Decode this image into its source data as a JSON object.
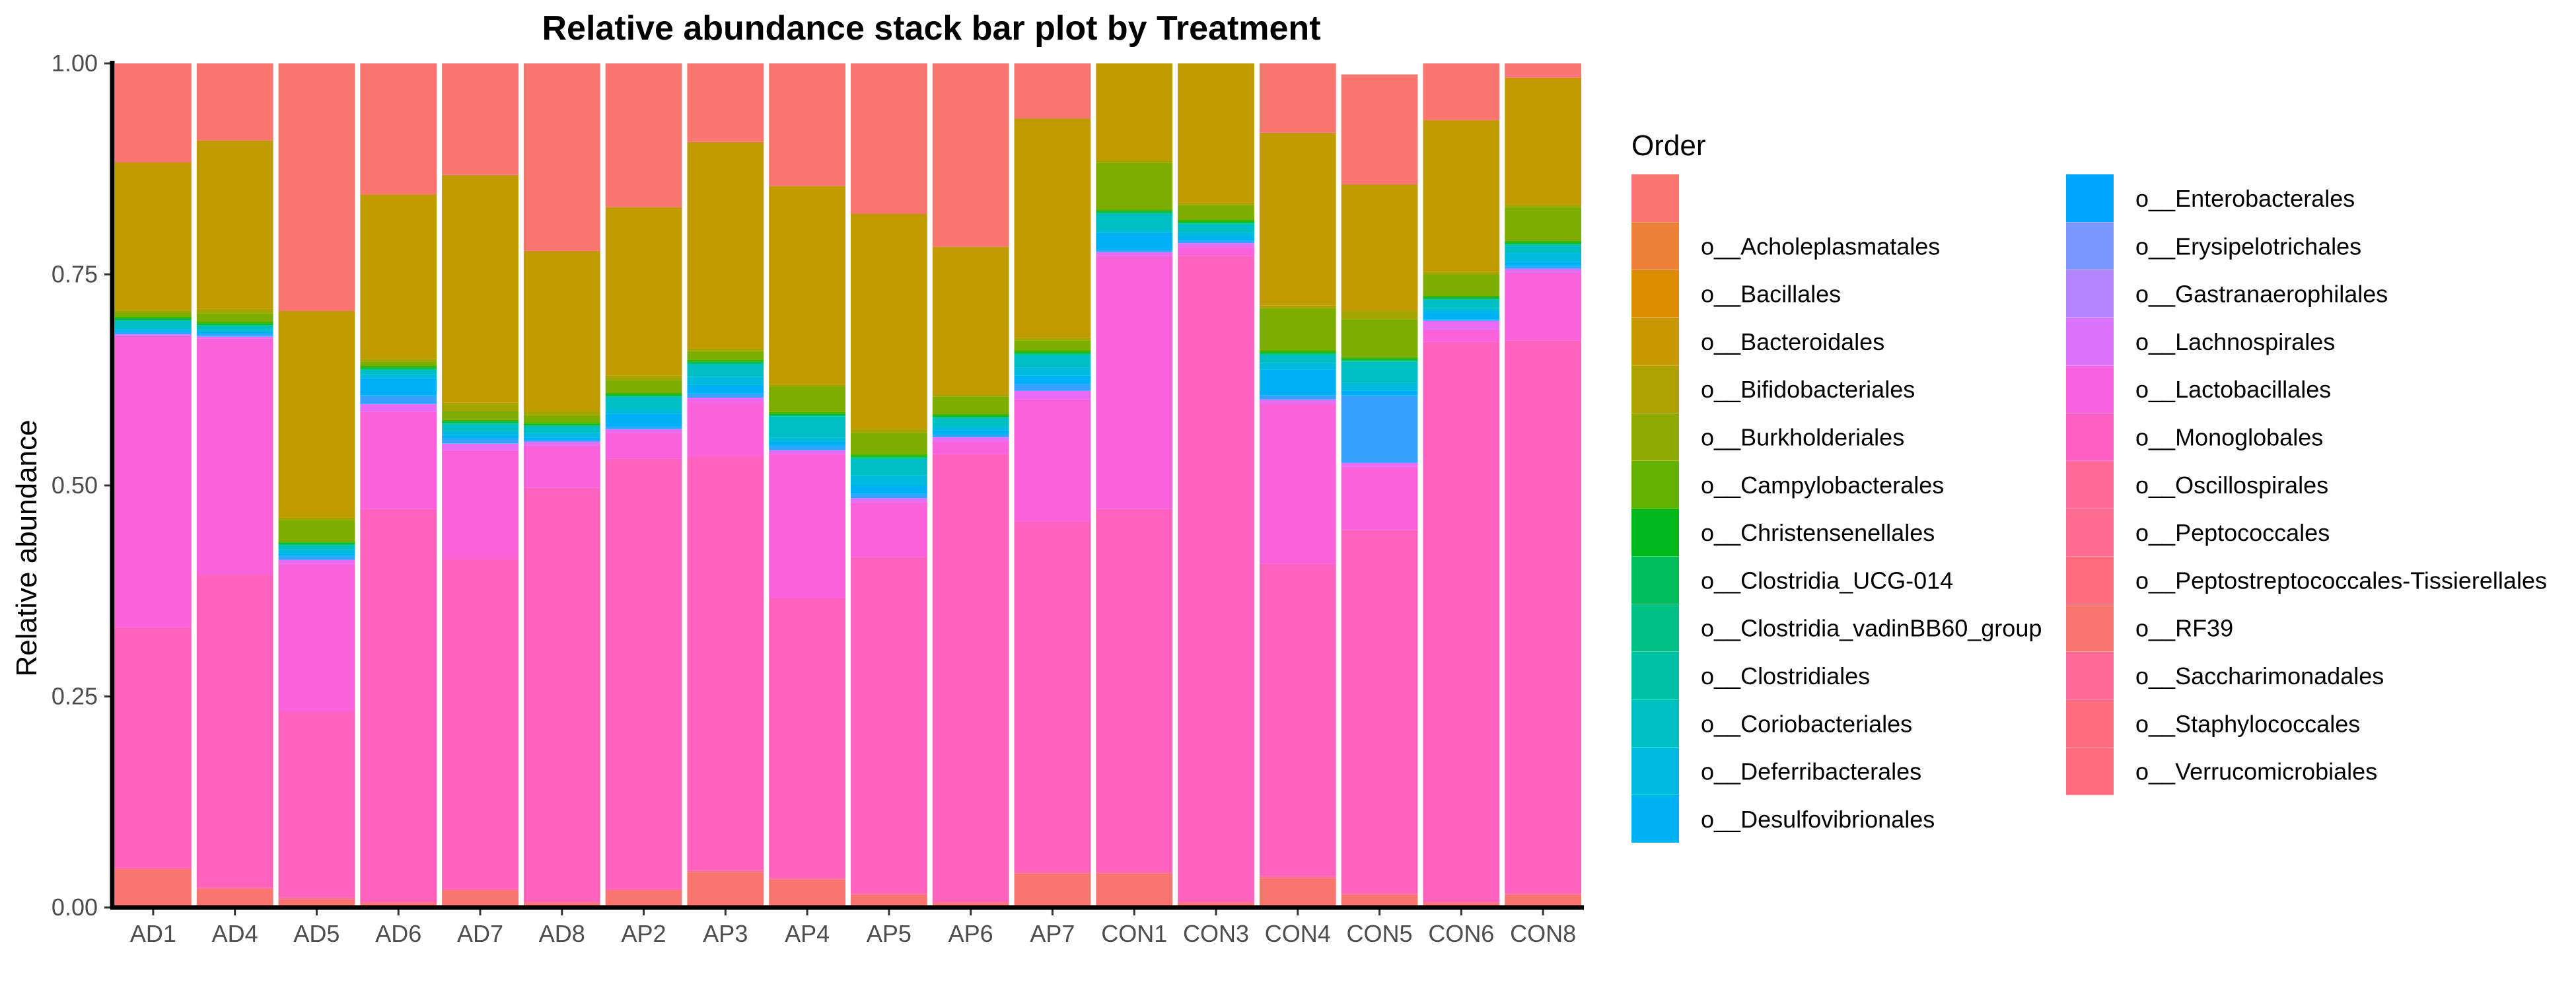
{
  "chart_data": {
    "type": "bar",
    "stacked": true,
    "title": "Relative abundance stack bar plot by Treatment",
    "xlabel": "",
    "ylabel": "Relative abundance",
    "ylim": [
      0,
      1
    ],
    "yticks": [
      "0.00",
      "0.25",
      "0.50",
      "0.75",
      "1.00"
    ],
    "grid": false,
    "legend_title": "Order",
    "legend_position": "right",
    "categories": [
      "AD1",
      "AD4",
      "AD5",
      "AD6",
      "AD7",
      "AD8",
      "AP2",
      "AP3",
      "AP4",
      "AP5",
      "AP6",
      "AP7",
      "CON1",
      "CON3",
      "CON4",
      "CON5",
      "CON6",
      "CON8"
    ],
    "series": [
      {
        "name": "",
        "color": "#F8766D",
        "values": [
          0.125,
          0.095,
          0.3,
          0.18,
          0.155,
          0.23,
          0.175,
          0.11,
          0.158,
          0.18,
          0.22,
          0.09,
          0.0,
          0.0,
          0.085,
          0.13,
          0.075,
          0.02
        ]
      },
      {
        "name": "o__Acholeplasmatales",
        "color": "#EA8331",
        "values": [
          0,
          0,
          0,
          0,
          0,
          0,
          0,
          0,
          0,
          0,
          0,
          0,
          0,
          0,
          0,
          0,
          0,
          0
        ]
      },
      {
        "name": "o__Bacillales",
        "color": "#D89000",
        "values": [
          0,
          0,
          0,
          0,
          0,
          0,
          0,
          0,
          0,
          0,
          0,
          0,
          0,
          0,
          0,
          0,
          0,
          0
        ]
      },
      {
        "name": "o__Bacteroidales",
        "color": "#C09B00",
        "values": [
          0.175,
          0.2,
          0.245,
          0.195,
          0.27,
          0.19,
          0.2,
          0.245,
          0.235,
          0.255,
          0.175,
          0.26,
          0.12,
          0.17,
          0.205,
          0.15,
          0.18,
          0.15
        ]
      },
      {
        "name": "o__Bifidobacteriales",
        "color": "#A3A500",
        "values": [
          0.003,
          0.005,
          0.003,
          0.003,
          0.01,
          0.005,
          0.005,
          0.003,
          0.003,
          0.005,
          0.003,
          0.003,
          0.003,
          0.003,
          0.003,
          0.01,
          0.003,
          0.003
        ]
      },
      {
        "name": "o__Burkholderiales",
        "color": "#7CAE00",
        "values": [
          0.005,
          0.01,
          0.025,
          0.005,
          0.01,
          0.008,
          0.015,
          0.01,
          0.03,
          0.025,
          0.02,
          0.012,
          0.055,
          0.017,
          0.05,
          0.045,
          0.025,
          0.04
        ]
      },
      {
        "name": "o__Campylobacterales",
        "color": "#39B600",
        "values": [
          0.002,
          0.002,
          0.002,
          0.002,
          0.002,
          0.002,
          0.002,
          0.002,
          0.002,
          0.002,
          0.002,
          0.002,
          0.002,
          0.002,
          0.002,
          0.002,
          0.002,
          0.002
        ]
      },
      {
        "name": "o__Christensenellales",
        "color": "#00BB4E",
        "values": [
          0.002,
          0.002,
          0.002,
          0.002,
          0.002,
          0.002,
          0.002,
          0.002,
          0.002,
          0.002,
          0.002,
          0.002,
          0.002,
          0.002,
          0.002,
          0.002,
          0.002,
          0.002
        ]
      },
      {
        "name": "o__Clostridia_UCG-014",
        "color": "#00BF7D",
        "values": [
          0.001,
          0.001,
          0.001,
          0.001,
          0.001,
          0.001,
          0.001,
          0.001,
          0.001,
          0.001,
          0.001,
          0.001,
          0.001,
          0.001,
          0.001,
          0.001,
          0.001,
          0.001
        ]
      },
      {
        "name": "o__Clostridia_vadinBB60_group",
        "color": "#00C1A3",
        "values": [
          0,
          0,
          0,
          0,
          0,
          0,
          0,
          0,
          0,
          0,
          0,
          0,
          0,
          0,
          0,
          0,
          0,
          0
        ]
      },
      {
        "name": "o__Clostridiales",
        "color": "#00BFC4",
        "values": [
          0.008,
          0.005,
          0.005,
          0.005,
          0.008,
          0.008,
          0.015,
          0.015,
          0.025,
          0.02,
          0.01,
          0.015,
          0.02,
          0.01,
          0.01,
          0.025,
          0.01,
          0.01
        ]
      },
      {
        "name": "o__Coriobacteriales",
        "color": "#00BAE0",
        "values": [
          0.003,
          0.002,
          0.005,
          0.005,
          0.005,
          0.005,
          0.005,
          0.01,
          0.005,
          0.012,
          0.005,
          0.01,
          0.003,
          0.005,
          0.008,
          0.01,
          0.005,
          0.01
        ]
      },
      {
        "name": "o__Deferribacterales",
        "color": "#00B0F6",
        "values": [
          0.002,
          0.002,
          0.002,
          0.02,
          0.005,
          0.003,
          0.015,
          0.01,
          0.005,
          0.01,
          0.005,
          0.01,
          0.02,
          0.005,
          0.03,
          0.005,
          0.008,
          0.005
        ]
      },
      {
        "name": "o__Desulfovibrionales",
        "color": "#35A2FF",
        "values": [
          0.003,
          0.003,
          0.005,
          0.01,
          0.005,
          0.002,
          0.003,
          0.005,
          0.005,
          0.005,
          0.003,
          0.008,
          0.002,
          0.003,
          0.005,
          0.08,
          0.002,
          0.003
        ]
      },
      {
        "name": "o__Enterobacterales",
        "color": "#9590FF",
        "values": [
          0,
          0,
          0,
          0,
          0,
          0,
          0,
          0,
          0,
          0,
          0,
          0,
          0,
          0,
          0,
          0,
          0,
          0
        ]
      },
      {
        "name": "o__Erysipelotrichales",
        "color": "#C77CFF",
        "values": [
          0,
          0,
          0,
          0,
          0,
          0,
          0,
          0,
          0,
          0,
          0,
          0,
          0,
          0,
          0,
          0,
          0,
          0
        ]
      },
      {
        "name": "o__Gastranaerophilales",
        "color": "#E76BF3",
        "values": [
          0.002,
          0.003,
          0.005,
          0.01,
          0.008,
          0.005,
          0.005,
          0.005,
          0.005,
          0.005,
          0.005,
          0.01,
          0.005,
          0.005,
          0.005,
          0.005,
          0.01,
          0.005
        ]
      },
      {
        "name": "o__Lachnospirales",
        "color": "#FA62DB",
        "values": [
          0.345,
          0.28,
          0.175,
          0.115,
          0.13,
          0.05,
          0.03,
          0.065,
          0.17,
          0.065,
          0.015,
          0.145,
          0.3,
          0.01,
          0.19,
          0.075,
          0.015,
          0.08
        ]
      },
      {
        "name": "o__Lactobacillales",
        "color": "#FF62BC",
        "values": [
          0.285,
          0.37,
          0.22,
          0.465,
          0.39,
          0.49,
          0.51,
          0.49,
          0.332,
          0.398,
          0.53,
          0.415,
          0.43,
          0.765,
          0.37,
          0.43,
          0.663,
          0.655
        ]
      },
      {
        "name": "o__Monoglobales",
        "color": "#FF6C91",
        "values": [
          0.002,
          0.002,
          0.002,
          0.002,
          0.002,
          0.002,
          0.002,
          0.002,
          0.002,
          0.002,
          0.002,
          0.002,
          0.002,
          0.002,
          0.002,
          0.002,
          0.002,
          0.002
        ]
      },
      {
        "name": "o__Oscillospirales",
        "color": "#F8766D",
        "values": [
          0.045,
          0.022,
          0.01,
          0.005,
          0.02,
          0.005,
          0.02,
          0.042,
          0.033,
          0.015,
          0.005,
          0.04,
          0.04,
          0.005,
          0.035,
          0.015,
          0.005,
          0.015
        ]
      },
      {
        "name": "o__Peptococcales",
        "color": "#E46BF0",
        "values": [
          0.002,
          0.002,
          0.002,
          0.002,
          0.002,
          0.002,
          0.002,
          0.002,
          0.002,
          0.002,
          0.002,
          0.002,
          0.002,
          0.002,
          0.002,
          0.002,
          0.002,
          0.002
        ]
      },
      {
        "name": "o__Peptostreptococcales-Tissierellales",
        "color": "#EE61D8",
        "values": [
          0.001,
          0.001,
          0.001,
          0.001,
          0.001,
          0.001,
          0.001,
          0.001,
          0.001,
          0.001,
          0.001,
          0.001,
          0.001,
          0.001,
          0.001,
          0.001,
          0.001,
          0.001
        ]
      },
      {
        "name": "o__RF39",
        "color": "#F65FC7",
        "values": [
          0,
          0,
          0,
          0,
          0,
          0,
          0,
          0,
          0,
          0,
          0,
          0,
          0,
          0,
          0,
          0,
          0,
          0
        ]
      },
      {
        "name": "o__Saccharimonadales",
        "color": "#FC61B0",
        "values": [
          0,
          0,
          0,
          0,
          0,
          0,
          0,
          0,
          0,
          0,
          0,
          0,
          0,
          0,
          0,
          0,
          0,
          0
        ]
      },
      {
        "name": "o__Staphylococcales",
        "color": "#FE6697",
        "values": [
          0,
          0,
          0,
          0,
          0,
          0,
          0,
          0,
          0,
          0,
          0,
          0,
          0,
          0,
          0,
          0,
          0,
          0
        ]
      },
      {
        "name": "o__Verrucomicrobiales",
        "color": "#FF6C7F",
        "values": [
          0.001,
          0.001,
          0.001,
          0.001,
          0.001,
          0.001,
          0.001,
          0.001,
          0.001,
          0.001,
          0.001,
          0.001,
          0.001,
          0.001,
          0.001,
          0.001,
          0.001,
          0.001
        ]
      }
    ],
    "stack_order_bottom_to_top": [
      20,
      19,
      18,
      17,
      16,
      15,
      14,
      13,
      12,
      11,
      10,
      9,
      8,
      7,
      6,
      5,
      4,
      3,
      0
    ],
    "legend_colors": [
      "#F8766D",
      "#EC8239",
      "#DB8E00",
      "#C79800",
      "#AEA200",
      "#8FAA00",
      "#64B200",
      "#00B81B",
      "#00BD5C",
      "#00C086",
      "#00C1A7",
      "#00BFC4",
      "#00BADE",
      "#00B2F3",
      "#00A6FF",
      "#7C96FF",
      "#B386FF",
      "#DC71FA",
      "#F763E0",
      "#FF5FC0",
      "#FF6A98",
      "#FF6C91",
      "#FF6C7F",
      "#F8766D",
      "#FF6997",
      "#FF6C7F",
      "#FF6C7F"
    ]
  }
}
